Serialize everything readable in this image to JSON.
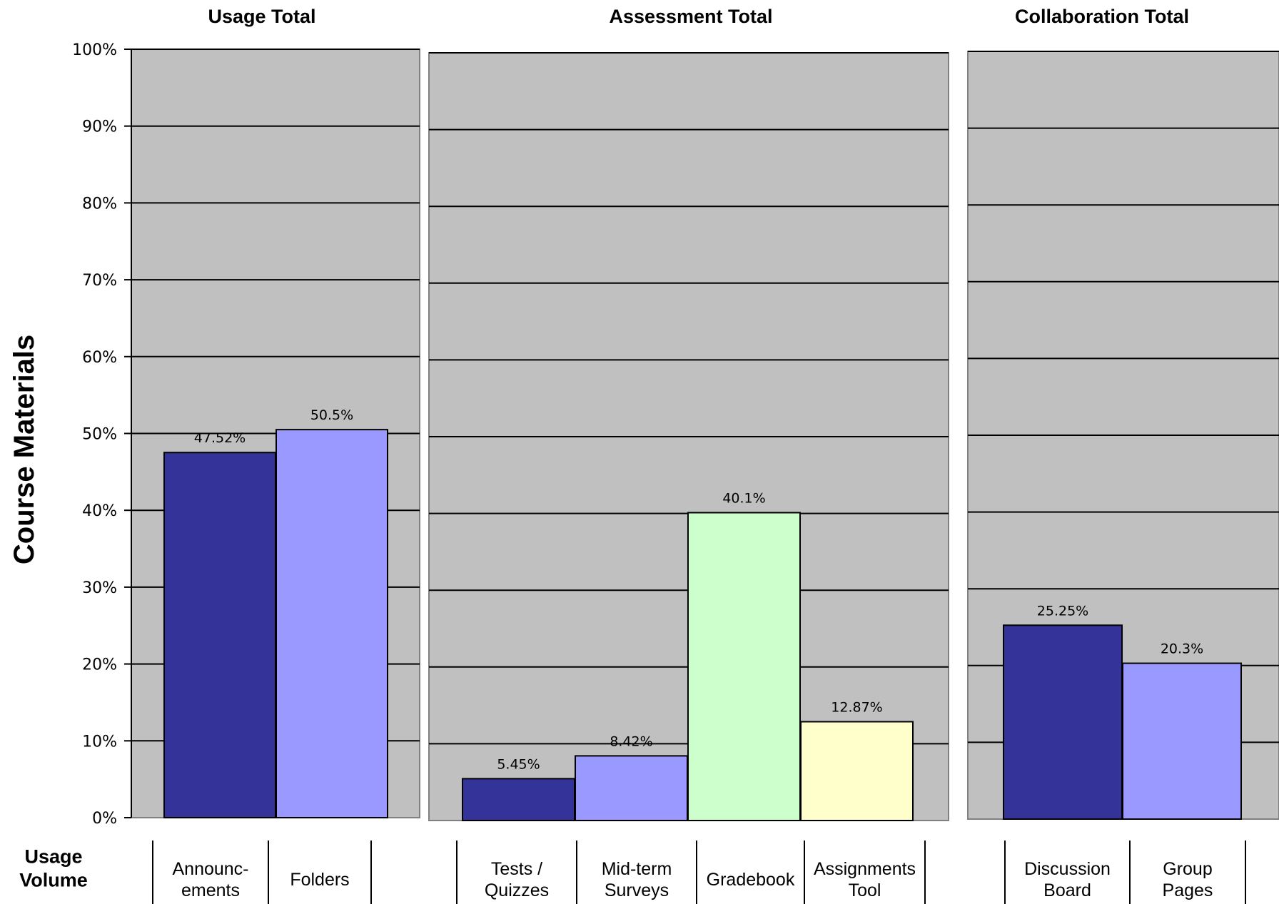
{
  "chart_data": [
    {
      "type": "bar",
      "title": "Usage Total",
      "categories": [
        "Announc-\nements",
        "Folders"
      ],
      "values": [
        47.52,
        50.5
      ],
      "data_labels": [
        "47.52%",
        "50.5%"
      ],
      "colors": [
        "#333399",
        "#9999ff"
      ],
      "ylim": [
        0,
        100
      ]
    },
    {
      "type": "bar",
      "title": "Assessment Total",
      "categories": [
        "Tests /\nQuizzes",
        "Mid-term\nSurveys",
        "Gradebook",
        "Assignments\nTool"
      ],
      "values": [
        5.45,
        8.42,
        40.1,
        12.87
      ],
      "data_labels": [
        "5.45%",
        "8.42%",
        "40.1%",
        "12.87%"
      ],
      "colors": [
        "#333399",
        "#9999ff",
        "#ccffcc",
        "#ffffcc"
      ],
      "ylim": [
        0,
        100
      ]
    },
    {
      "type": "bar",
      "title": "Collaboration Total",
      "categories": [
        "Discussion\nBoard",
        "Group\nPages"
      ],
      "values": [
        25.25,
        20.3
      ],
      "data_labels": [
        "25.25%",
        "20.3%"
      ],
      "colors": [
        "#333399",
        "#9999ff"
      ],
      "ylim": [
        0,
        100
      ]
    }
  ],
  "y_axis": {
    "title": "Course Materials",
    "ticks": [
      "0%",
      "10%",
      "20%",
      "30%",
      "40%",
      "50%",
      "60%",
      "70%",
      "80%",
      "90%",
      "100%"
    ],
    "tick_values": [
      0,
      10,
      20,
      30,
      40,
      50,
      60,
      70,
      80,
      90,
      100
    ],
    "grid": true
  },
  "category_row_label": "Usage\nVolume",
  "colors": {
    "plot_background": "#c0c0c0",
    "gridline": "#000000"
  }
}
